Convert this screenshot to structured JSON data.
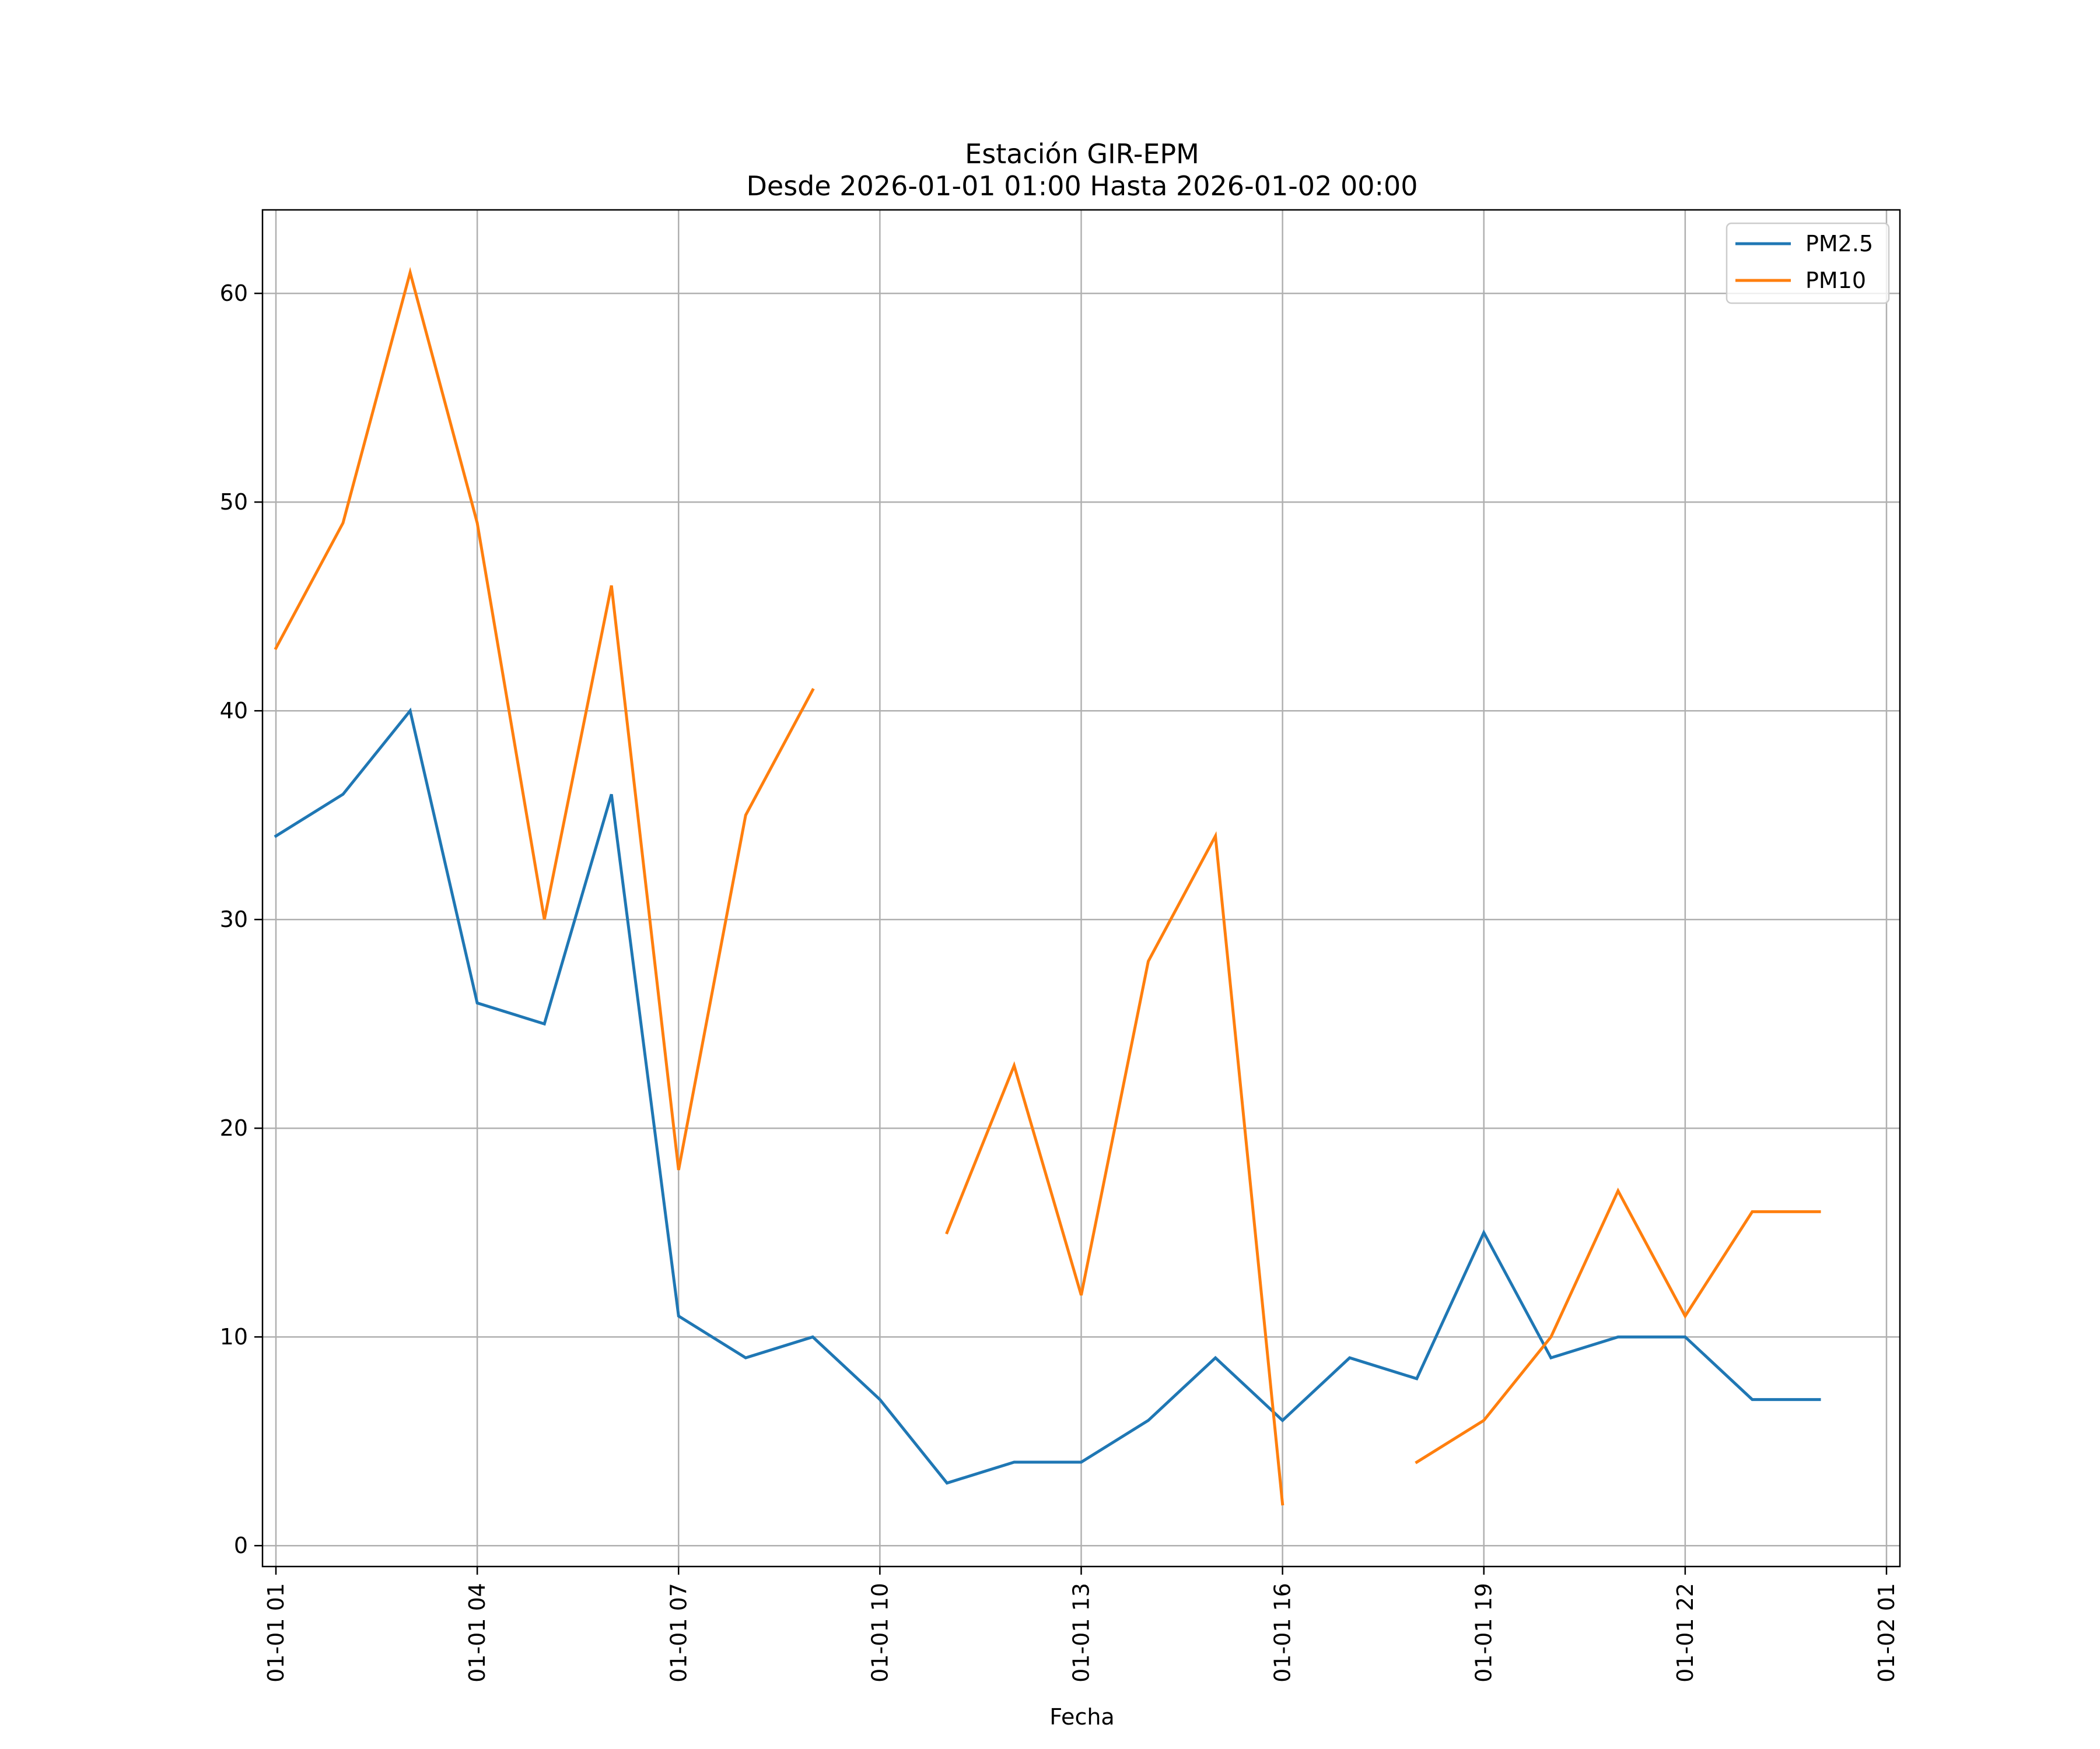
{
  "chart_data": {
    "type": "line",
    "title": "Estación GIR-EPM",
    "subtitle": "Desde 2026-01-01 01:00 Hasta 2026-01-02 00:00",
    "xlabel": "Fecha",
    "ylabel": "",
    "x": [
      "01-01 01",
      "01-01 02",
      "01-01 03",
      "01-01 04",
      "01-01 05",
      "01-01 06",
      "01-01 07",
      "01-01 08",
      "01-01 09",
      "01-01 10",
      "01-01 11",
      "01-01 12",
      "01-01 13",
      "01-01 14",
      "01-01 15",
      "01-01 16",
      "01-01 17",
      "01-01 18",
      "01-01 19",
      "01-01 20",
      "01-01 21",
      "01-01 22",
      "01-01 23",
      "01-02 00"
    ],
    "xlim_hours": [
      -0.2,
      24.2
    ],
    "xticks": [
      {
        "hour": 0,
        "label": "01-01 01"
      },
      {
        "hour": 3,
        "label": "01-01 04"
      },
      {
        "hour": 6,
        "label": "01-01 07"
      },
      {
        "hour": 9,
        "label": "01-01 10"
      },
      {
        "hour": 12,
        "label": "01-01 13"
      },
      {
        "hour": 15,
        "label": "01-01 16"
      },
      {
        "hour": 18,
        "label": "01-01 19"
      },
      {
        "hour": 21,
        "label": "01-01 22"
      },
      {
        "hour": 24,
        "label": "01-02 01"
      }
    ],
    "ylim": [
      -1,
      64
    ],
    "yticks": [
      0,
      10,
      20,
      30,
      40,
      50,
      60
    ],
    "grid": true,
    "legend_position": "top-right",
    "series": [
      {
        "name": "PM2.5",
        "color": "#1f77b4",
        "values": [
          34,
          36,
          40,
          26,
          25,
          36,
          11,
          9,
          10,
          7,
          3,
          4,
          4,
          6,
          9,
          6,
          9,
          8,
          15,
          9,
          10,
          10,
          7,
          7
        ]
      },
      {
        "name": "PM10",
        "color": "#ff7f0e",
        "values": [
          43,
          49,
          61,
          49,
          30,
          46,
          18,
          35,
          41,
          null,
          15,
          23,
          12,
          28,
          34,
          2,
          null,
          4,
          6,
          10,
          17,
          11,
          16,
          16
        ]
      }
    ]
  }
}
